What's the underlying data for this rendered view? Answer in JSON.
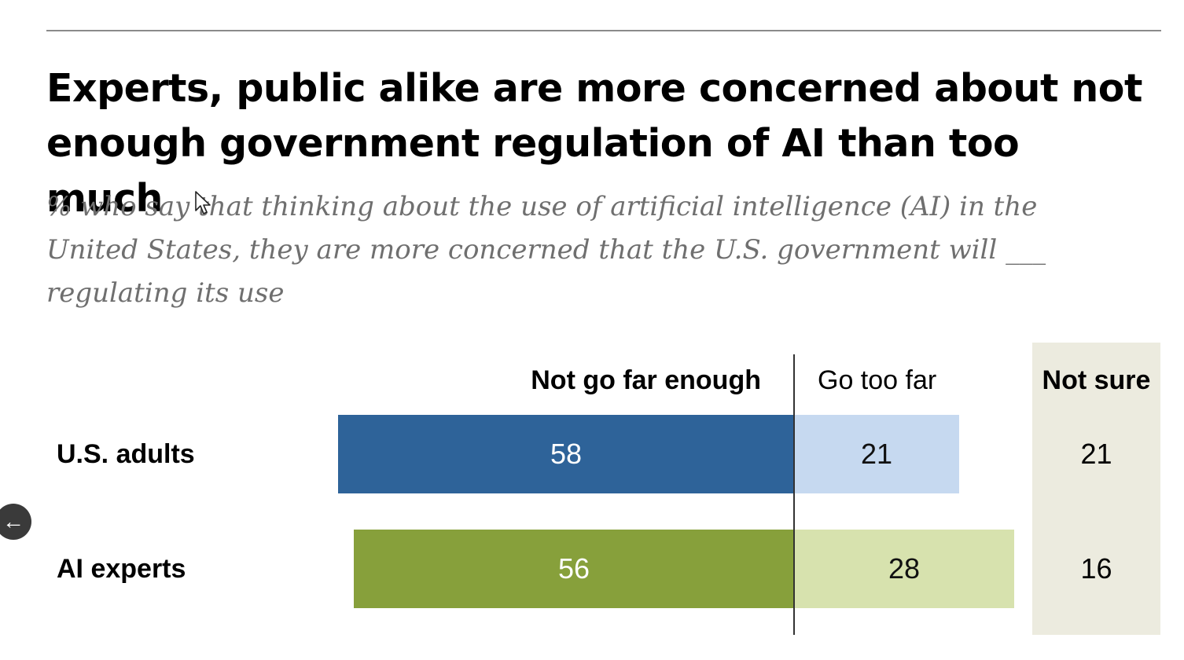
{
  "chart_data": {
    "type": "bar",
    "orientation": "horizontal",
    "stacked": "diverging",
    "title": "Experts, public alike are more concerned about not enough government regulation of AI than too much",
    "subtitle": "% who say that thinking about the use of artificial intelligence (AI) in the United States, they are more concerned that the U.S. government will ___ regulating its use",
    "categories": [
      "U.S. adults",
      "AI experts"
    ],
    "series": [
      {
        "name": "Not go far enough",
        "values": [
          58,
          56
        ]
      },
      {
        "name": "Go too far",
        "values": [
          21,
          28
        ]
      },
      {
        "name": "Not sure",
        "values": [
          21,
          16
        ]
      }
    ],
    "colors": {
      "U.S. adults": {
        "Not go far enough": "#2e6399",
        "Go too far": "#c6d9f0"
      },
      "AI experts": {
        "Not go far enough": "#87a03b",
        "Go too far": "#d7e2ae"
      },
      "Not sure band": "#ecebdf"
    }
  },
  "ui": {
    "back_icon": "arrow-left-icon",
    "back_glyph": "←",
    "cursor_icon": "mouse-pointer-icon"
  }
}
